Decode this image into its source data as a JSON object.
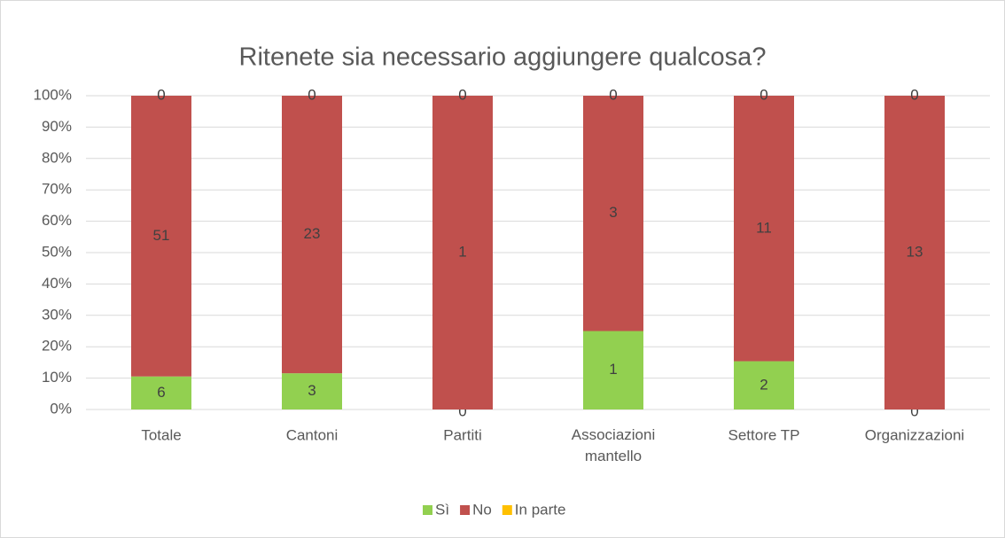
{
  "chart_data": {
    "type": "bar",
    "stacked": "percent",
    "title": "Ritenete sia necessario aggiungere qualcosa?",
    "categories": [
      "Totale",
      "Cantoni",
      "Partiti",
      "Associazioni mantello",
      "Settore TP",
      "Organizzazioni"
    ],
    "series": [
      {
        "name": "Sì",
        "color": "#92d050",
        "values": [
          6,
          3,
          0,
          1,
          2,
          0
        ]
      },
      {
        "name": "No",
        "color": "#c0504d",
        "values": [
          51,
          23,
          1,
          3,
          11,
          13
        ]
      },
      {
        "name": "In parte",
        "color": "#ffc000",
        "values": [
          0,
          0,
          0,
          0,
          0,
          0
        ]
      }
    ],
    "ylim": [
      0,
      100
    ],
    "yticks": [
      {
        "value": 0,
        "label": "0%"
      },
      {
        "value": 10,
        "label": "10%"
      },
      {
        "value": 20,
        "label": "20%"
      },
      {
        "value": 30,
        "label": "30%"
      },
      {
        "value": 40,
        "label": "40%"
      },
      {
        "value": 50,
        "label": "50%"
      },
      {
        "value": 60,
        "label": "60%"
      },
      {
        "value": 70,
        "label": "70%"
      },
      {
        "value": 80,
        "label": "80%"
      },
      {
        "value": 90,
        "label": "90%"
      },
      {
        "value": 100,
        "label": "100%"
      }
    ],
    "grid": true,
    "legend": "bottom"
  }
}
